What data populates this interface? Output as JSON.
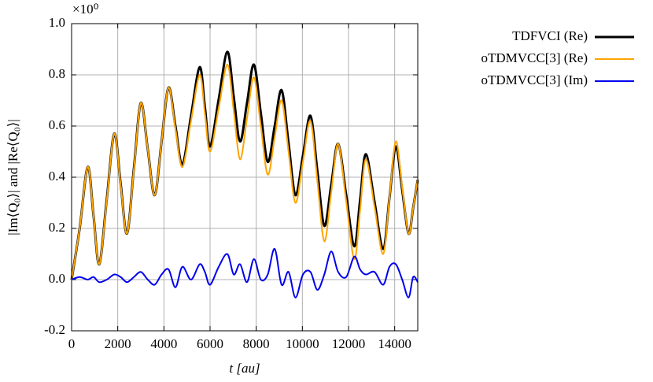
{
  "chart_data": {
    "type": "line",
    "multiplier": "×10⁰",
    "xlabel": "t [au]",
    "ylabel": "|Im⟨Q₀⟩| and |Re⟨Q₀⟩|",
    "x": [
      0,
      350,
      700,
      950,
      1200,
      1525,
      1850,
      2125,
      2400,
      2700,
      3000,
      3300,
      3600,
      3900,
      4200,
      4500,
      4800,
      5175,
      5550,
      5775,
      6000,
      6375,
      6750,
      7025,
      7300,
      7600,
      7900,
      8200,
      8500,
      8800,
      9100,
      9400,
      9700,
      10025,
      10350,
      10650,
      10950,
      11250,
      11550,
      11900,
      12250,
      12500,
      12750,
      13125,
      13500,
      13775,
      14050,
      14325,
      14600,
      14800,
      15000
    ],
    "series": [
      {
        "name": "TDFVCI (Re)",
        "color": "#000000",
        "width": 3,
        "values": [
          0,
          0.2,
          0.44,
          0.25,
          0.06,
          0.315,
          0.57,
          0.375,
          0.18,
          0.435,
          0.69,
          0.51,
          0.33,
          0.54,
          0.75,
          0.6,
          0.45,
          0.64,
          0.83,
          0.675,
          0.52,
          0.705,
          0.89,
          0.715,
          0.54,
          0.69,
          0.84,
          0.65,
          0.46,
          0.6,
          0.74,
          0.535,
          0.33,
          0.485,
          0.64,
          0.425,
          0.21,
          0.37,
          0.53,
          0.33,
          0.13,
          0.31,
          0.49,
          0.305,
          0.12,
          0.32,
          0.52,
          0.35,
          0.18,
          0.28,
          0.39
        ]
      },
      {
        "name": "oTDMVCC[3] (Re)",
        "color": "#ffa500",
        "width": 2,
        "values": [
          0,
          0.2,
          0.44,
          0.25,
          0.06,
          0.31,
          0.57,
          0.37,
          0.18,
          0.43,
          0.69,
          0.51,
          0.33,
          0.54,
          0.75,
          0.59,
          0.44,
          0.62,
          0.8,
          0.65,
          0.5,
          0.67,
          0.84,
          0.66,
          0.47,
          0.63,
          0.79,
          0.6,
          0.41,
          0.555,
          0.7,
          0.5,
          0.3,
          0.46,
          0.62,
          0.385,
          0.15,
          0.34,
          0.53,
          0.305,
          0.08,
          0.27,
          0.47,
          0.285,
          0.1,
          0.32,
          0.54,
          0.36,
          0.18,
          0.28,
          0.39
        ]
      },
      {
        "name": "oTDMVCC[3] (Im)",
        "color": "#0000ee",
        "width": 2,
        "values": [
          0,
          0.01,
          0,
          0.01,
          -0.01,
          0,
          0.02,
          0.01,
          -0.01,
          0.01,
          0.03,
          0,
          -0.02,
          0.02,
          0.04,
          -0.03,
          0.05,
          0,
          0.06,
          0.03,
          -0.02,
          0.05,
          0.1,
          0.02,
          0.06,
          -0.01,
          0.08,
          0,
          0.02,
          0.12,
          -0.02,
          0.03,
          -0.07,
          0.02,
          0.03,
          -0.04,
          0.02,
          0.11,
          0.03,
          0.01,
          0.09,
          0.04,
          0.02,
          0.03,
          -0.02,
          0.05,
          0.06,
          0,
          -0.07,
          0.01,
          -0.01
        ]
      }
    ],
    "xlim": [
      0,
      15000
    ],
    "xticks": [
      0,
      2000,
      4000,
      6000,
      8000,
      10000,
      12000,
      14000
    ],
    "ylim": [
      -0.2,
      1.0
    ],
    "yticks": [
      -0.2,
      {
        "value": 0,
        "label": "0.0"
      },
      0.2,
      0.4,
      0.6,
      0.8,
      {
        "value": 1,
        "label": "1.0"
      }
    ],
    "grid": true,
    "legend": "outside-right"
  }
}
